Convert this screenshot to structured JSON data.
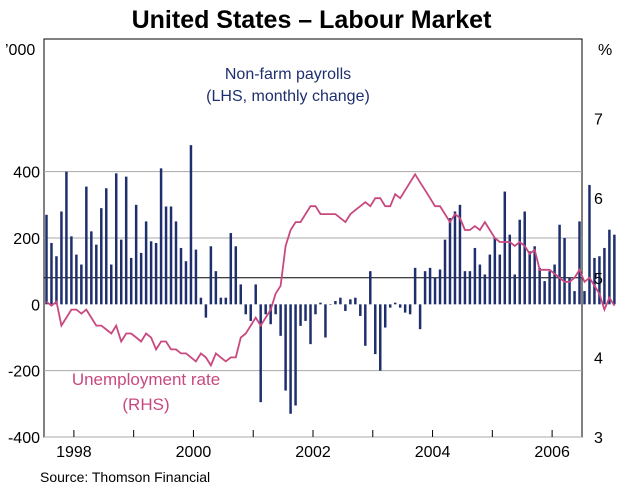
{
  "title": "United States – Labour Market",
  "source": "Source: Thomson Financial",
  "chart_data": {
    "type": "bar+line",
    "title": "United States – Labour Market",
    "left_unit": "’000",
    "right_unit": "%",
    "ylim_left": [
      -400,
      800
    ],
    "ylim_right": [
      3,
      8
    ],
    "left_ticks": [
      -400,
      -200,
      0,
      200,
      400
    ],
    "left_tick_labels": [
      "-400",
      "-200",
      "0",
      "200",
      "400"
    ],
    "right_ticks": [
      3,
      4,
      5,
      6,
      7
    ],
    "right_tick_labels": [
      "3",
      "4",
      "5",
      "6",
      "7"
    ],
    "x_range": [
      1997.5,
      2006.5
    ],
    "x_ticks": [
      1998,
      2000,
      2002,
      2004,
      2006
    ],
    "x_tick_labels": [
      "1998",
      "2000",
      "2002",
      "2004",
      "2006"
    ],
    "grid": true,
    "series": [
      {
        "name": "Non-farm payrolls",
        "label_lines": [
          "Non-farm payrolls",
          "(LHS, monthly change)"
        ],
        "axis": "left",
        "type": "bar",
        "color": "#1f2f6e",
        "start_month": "1997-07",
        "values": [
          270,
          185,
          145,
          280,
          400,
          205,
          150,
          120,
          355,
          220,
          180,
          290,
          350,
          120,
          395,
          195,
          385,
          140,
          300,
          155,
          250,
          190,
          185,
          410,
          295,
          295,
          250,
          170,
          130,
          480,
          165,
          20,
          -40,
          175,
          100,
          20,
          20,
          215,
          175,
          60,
          -30,
          -50,
          60,
          -295,
          -30,
          -60,
          -30,
          -95,
          -260,
          -330,
          -305,
          -65,
          -50,
          -120,
          -30,
          5,
          -100,
          0,
          10,
          20,
          -20,
          15,
          20,
          -35,
          -125,
          100,
          -150,
          -200,
          -70,
          -10,
          5,
          -10,
          -25,
          -30,
          110,
          -75,
          100,
          110,
          80,
          105,
          195,
          260,
          280,
          300,
          100,
          100,
          170,
          120,
          90,
          150,
          200,
          150,
          340,
          210,
          90,
          255,
          280,
          160,
          175,
          110,
          70,
          100,
          120,
          240,
          200,
          80,
          40,
          250,
          40,
          360,
          140,
          145,
          170,
          225,
          210
        ]
      },
      {
        "name": "Unemployment rate",
        "label_lines": [
          "Unemployment rate",
          "(RHS)"
        ],
        "axis": "right",
        "type": "line",
        "color": "#c8497f",
        "start_month": "1997-07",
        "values": [
          4.7,
          4.65,
          4.7,
          4.4,
          4.5,
          4.6,
          4.6,
          4.55,
          4.6,
          4.5,
          4.4,
          4.4,
          4.35,
          4.3,
          4.4,
          4.2,
          4.3,
          4.3,
          4.25,
          4.2,
          4.3,
          4.25,
          4.1,
          4.2,
          4.2,
          4.1,
          4.1,
          4.05,
          4.05,
          4.0,
          3.95,
          4.05,
          4.0,
          3.9,
          4.05,
          4.0,
          3.95,
          4.0,
          4.0,
          4.25,
          4.3,
          4.4,
          4.5,
          4.4,
          4.5,
          4.6,
          4.8,
          4.9,
          5.4,
          5.6,
          5.7,
          5.7,
          5.8,
          5.9,
          5.9,
          5.8,
          5.8,
          5.8,
          5.8,
          5.75,
          5.7,
          5.8,
          5.85,
          5.9,
          5.95,
          5.9,
          6.0,
          6.0,
          5.9,
          5.9,
          6.05,
          6.0,
          6.1,
          6.2,
          6.3,
          6.2,
          6.1,
          6.0,
          5.9,
          5.9,
          5.8,
          5.7,
          5.8,
          5.75,
          5.6,
          5.6,
          5.65,
          5.6,
          5.7,
          5.6,
          5.5,
          5.45,
          5.45,
          5.45,
          5.4,
          5.45,
          5.4,
          5.3,
          5.35,
          5.1,
          5.1,
          5.1,
          5.05,
          5.0,
          4.95,
          4.95,
          5.0,
          5.1,
          4.95,
          5.0,
          4.9,
          4.8,
          4.6,
          4.75,
          4.65
        ]
      }
    ]
  }
}
